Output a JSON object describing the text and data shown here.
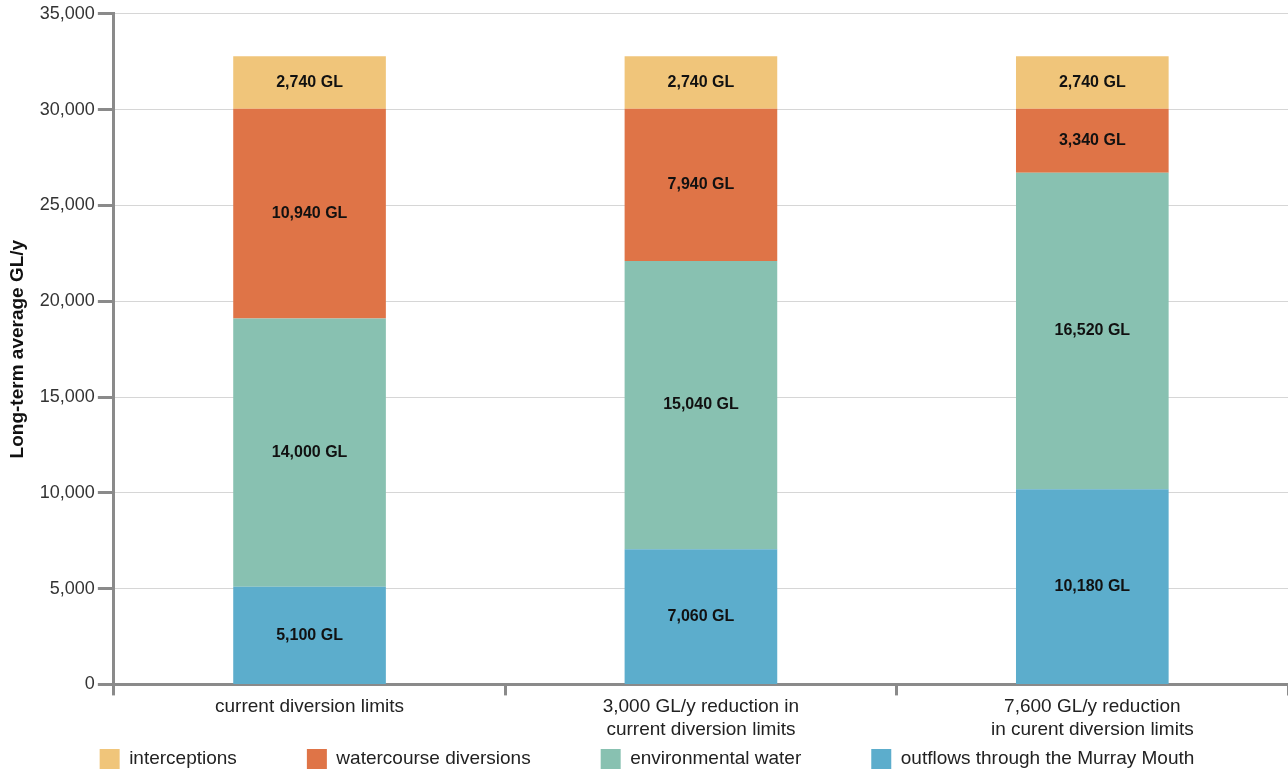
{
  "chart_data": {
    "type": "bar",
    "stacked": true,
    "categories": [
      "current diversion limits",
      "3,000 GL/y reduction in\ncurrent diversion limits",
      "7,600 GL/y reduction\nin curent diversion limits"
    ],
    "ylabel": "Long-term average GL/y",
    "ylim": [
      0,
      35000
    ],
    "yticks": [
      0,
      {
        "value": 5000,
        "label": "5,000"
      },
      {
        "value": 10000,
        "label": "10,000"
      },
      {
        "value": 15000,
        "label": "15,000"
      },
      {
        "value": 20000,
        "label": "20,000"
      },
      {
        "value": 25000,
        "label": "25,000"
      },
      {
        "value": 30000,
        "label": "30,000"
      },
      {
        "value": 35000,
        "label": "35,000"
      }
    ],
    "grid": "y",
    "legend": "bottom",
    "series": [
      {
        "name": "outflows through the Murray Mouth",
        "color": "#5cadcc",
        "values": [
          5100,
          7060,
          10180
        ],
        "value_labels": [
          "5,100 GL",
          "7,060 GL",
          "10,180 GL"
        ]
      },
      {
        "name": "environmental water",
        "color": "#88c1b1",
        "values": [
          14000,
          15040,
          16520
        ],
        "value_labels": [
          "14,000 GL",
          "15,040 GL",
          "16,520 GL"
        ]
      },
      {
        "name": "watercourse diversions",
        "color": "#df7447",
        "values": [
          10940,
          7940,
          3340
        ],
        "value_labels": [
          "10,940 GL",
          "7,940 GL",
          "3,340 GL"
        ]
      },
      {
        "name": "interceptions",
        "color": "#f0c57a",
        "values": [
          2740,
          2740,
          2740
        ],
        "value_labels": [
          "2,740 GL",
          "2,740 GL",
          "2,740 GL"
        ]
      }
    ]
  }
}
